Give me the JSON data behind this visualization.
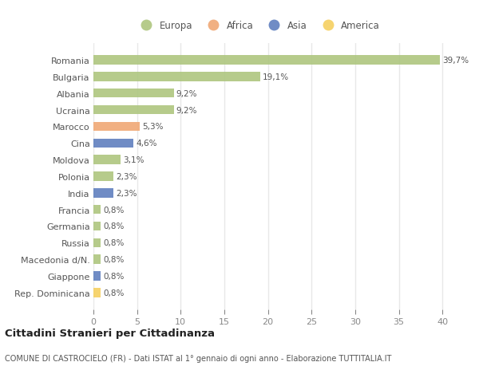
{
  "countries": [
    "Romania",
    "Bulgaria",
    "Albania",
    "Ucraina",
    "Marocco",
    "Cina",
    "Moldova",
    "Polonia",
    "India",
    "Francia",
    "Germania",
    "Russia",
    "Macedonia d/N.",
    "Giappone",
    "Rep. Dominicana"
  ],
  "values": [
    39.7,
    19.1,
    9.2,
    9.2,
    5.3,
    4.6,
    3.1,
    2.3,
    2.3,
    0.8,
    0.8,
    0.8,
    0.8,
    0.8,
    0.8
  ],
  "labels": [
    "39,7%",
    "19,1%",
    "9,2%",
    "9,2%",
    "5,3%",
    "4,6%",
    "3,1%",
    "2,3%",
    "2,3%",
    "0,8%",
    "0,8%",
    "0,8%",
    "0,8%",
    "0,8%",
    "0,8%"
  ],
  "continents": [
    "Europa",
    "Europa",
    "Europa",
    "Europa",
    "Africa",
    "Asia",
    "Europa",
    "Europa",
    "Asia",
    "Europa",
    "Europa",
    "Europa",
    "Europa",
    "Asia",
    "America"
  ],
  "colors": {
    "Europa": "#aec67f",
    "Africa": "#f0a875",
    "Asia": "#6080bf",
    "America": "#f5d060"
  },
  "background_color": "#ffffff",
  "grid_color": "#e8e8e8",
  "title": "Cittadini Stranieri per Cittadinanza",
  "subtitle": "COMUNE DI CASTROCIELO (FR) - Dati ISTAT al 1° gennaio di ogni anno - Elaborazione TUTTITALIA.IT",
  "xlim": [
    0,
    42
  ],
  "xticks": [
    0,
    5,
    10,
    15,
    20,
    25,
    30,
    35,
    40
  ],
  "legend_order": [
    "Europa",
    "Africa",
    "Asia",
    "America"
  ],
  "label_color": "#555555",
  "tick_color": "#888888"
}
